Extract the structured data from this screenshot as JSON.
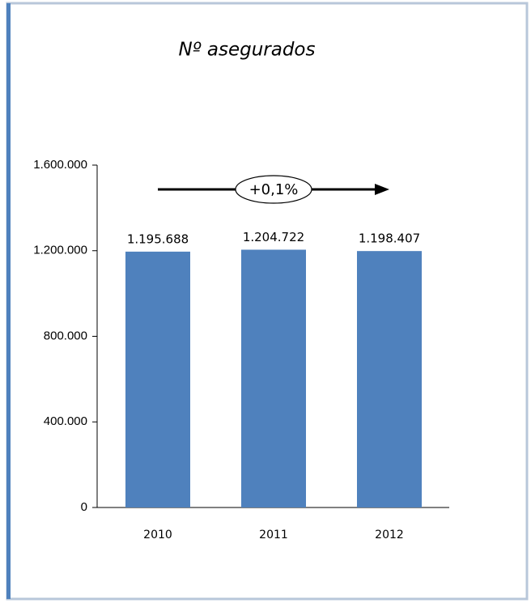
{
  "chart_data": {
    "type": "bar",
    "title": "Nº asegurados",
    "categories": [
      "2010",
      "2011",
      "2012"
    ],
    "values": [
      1195688,
      1204722,
      1198407
    ],
    "value_labels": [
      "1.195.688",
      "1.204.722",
      "1.198.407"
    ],
    "color": "#4f81bd",
    "ylim": [
      0,
      1600000
    ],
    "yticks": [
      0,
      {
        "value": 400000,
        "label": "400.000"
      },
      {
        "value": 800000,
        "label": "800.000"
      },
      {
        "value": 1200000,
        "label": "1.200.000"
      },
      {
        "value": 1600000,
        "label": "1.600.000"
      }
    ],
    "annotation": "+0,1%"
  }
}
